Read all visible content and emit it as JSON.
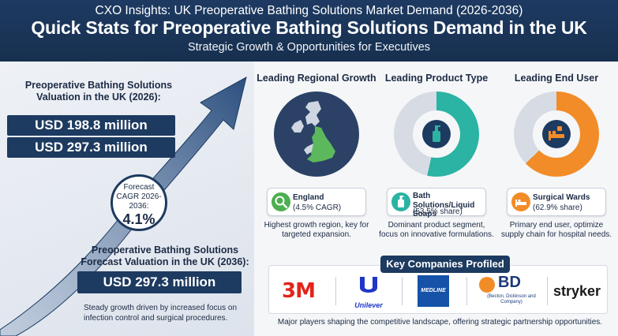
{
  "header": {
    "top": "CXO Insights: UK Preoperative Bathing Solutions Market Demand (2026-2036)",
    "title": "Quick Stats for Preoperative Bathing Solutions Demand in the UK",
    "subtitle": "Strategic Growth & Opportunities for Executives"
  },
  "left": {
    "valuation_label": "Preoperative Bathing Solutions Valuation in the UK (2026):",
    "valuation_2026": "USD 198.8 million",
    "valuation_2036_top": "USD 297.3 million",
    "cagr_label": "Forecast CAGR 2026-2036:",
    "cagr_value": "4.1%",
    "forecast_label": "Preoperative Bathing Solutions Forecast Valuation in the UK (2036):",
    "forecast_value": "USD 297.3 million",
    "note": "Steady growth driven by increased focus on infection control and surgical procedures."
  },
  "columns": [
    {
      "title": "Leading Regional Growth",
      "name": "England",
      "sub": "(4.5% CAGR)",
      "note": "Highest growth region, key for targeted expansion.",
      "icon": "magnifier-icon",
      "color": "#4caf50"
    },
    {
      "title": "Leading Product Type",
      "name": "Bath Solutions/Liquid Soaps",
      "sub": "(53.5% share)",
      "note": "Dominant product segment, focus on innovative formulations.",
      "icon": "soap-bottle-icon",
      "color": "#2bb3a3",
      "share": 53.5
    },
    {
      "title": "Leading End User",
      "name": "Surgical Wards",
      "sub": "(62.9% share)",
      "note": "Primary end user, optimize supply chain for hospital needs.",
      "icon": "hospital-bed-icon",
      "color": "#f28c28",
      "share": 62.9
    }
  ],
  "companies": {
    "title": "Key Companies Profiled",
    "logos": [
      "3M",
      "Unilever",
      "MEDLINE",
      "BD",
      "(Becton, Dickinson and Company)",
      "stryker"
    ],
    "note": "Major players shaping the competitive landscape, offering strategic partnership opportunities."
  },
  "colors": {
    "navy": "#1d3a60",
    "green": "#4caf50",
    "teal": "#2bb3a3",
    "orange": "#f28c28",
    "red_3m": "#e1251b"
  }
}
